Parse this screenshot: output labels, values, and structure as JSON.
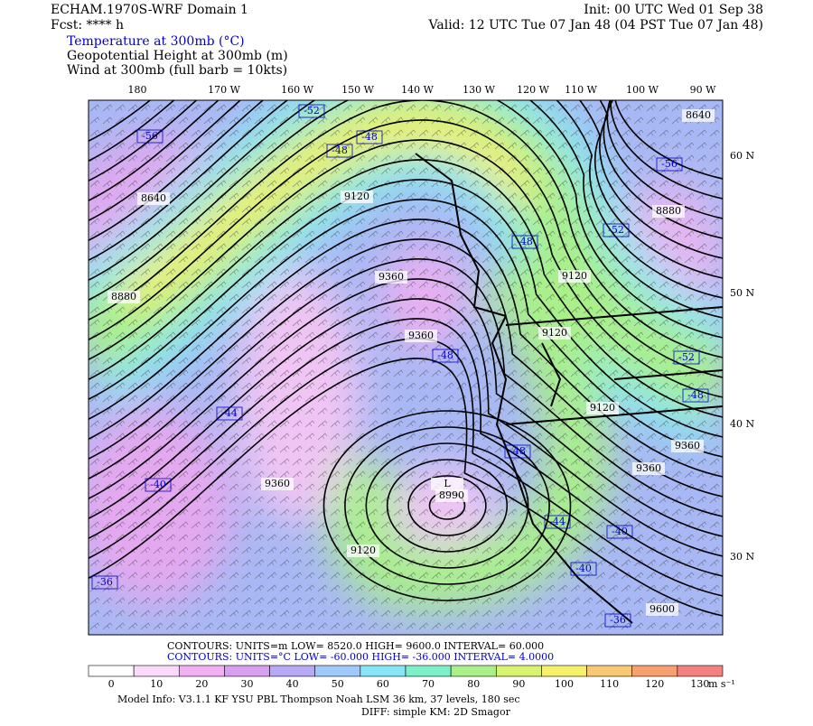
{
  "header": {
    "model": "ECHAM.1970S-WRF Domain 1",
    "fcst": "Fcst: **** h",
    "init": "Init: 00 UTC Wed 01 Sep 38",
    "valid": "Valid: 12 UTC Tue 07 Jan 48 (04 PST Tue 07 Jan 48)",
    "fields": [
      "Temperature at 300mb (°C)",
      "Geopotential Height at 300mb (m)",
      "Wind at 300mb (full barb = 10kts)"
    ]
  },
  "map": {
    "lon_labels": [
      "180",
      "170 W",
      "160 W",
      "150 W",
      "140 W",
      "130 W",
      "120 W",
      "110 W",
      "100 W",
      "90 W"
    ],
    "lat_labels": [
      "60 N",
      "50 N",
      "40 N",
      "30 N"
    ],
    "height_labels": [
      "8640",
      "8640",
      "9120",
      "8880",
      "8880",
      "9360",
      "9120",
      "9360",
      "9120",
      "9120",
      "9360",
      "9360",
      "9360",
      "L",
      "8990",
      "9120",
      "9600"
    ],
    "temp_labels": [
      "-52",
      "-56",
      "-48",
      "-48",
      "-56",
      "-52",
      "-48",
      "-48",
      "-52",
      "-48",
      "-44",
      "-48",
      "-40",
      "-44",
      "-40",
      "-40",
      "-36",
      "-36"
    ]
  },
  "footer": {
    "contours_height": "CONTOURS:  UNITS=m  LOW=   8520.0      HIGH=  9600.0      INTERVAL=   60.000",
    "contours_temp": "CONTOURS:  UNITS=°C  LOW= -60.000      HIGH= -36.000      INTERVAL=   4.0000",
    "colorbar": {
      "ticks": [
        0,
        10,
        20,
        30,
        40,
        50,
        60,
        70,
        80,
        90,
        100,
        110,
        120,
        130
      ],
      "unit": "m s⁻¹",
      "colors": [
        "#ffffff",
        "#fbd9fb",
        "#f2b0f2",
        "#d89ef0",
        "#b7a9f5",
        "#9fc8fb",
        "#86e6f5",
        "#7cf0c8",
        "#a9f08a",
        "#d8f370",
        "#f7f06a",
        "#f9c874",
        "#f7a070",
        "#f58080"
      ]
    },
    "model_info": "Model Info: V3.1.1    KF      YSU PBL   Thompson     Noah LSM   36 km,    37 levels,   180 sec",
    "diff": "DIFF: simple KM: 2D Smagor"
  }
}
